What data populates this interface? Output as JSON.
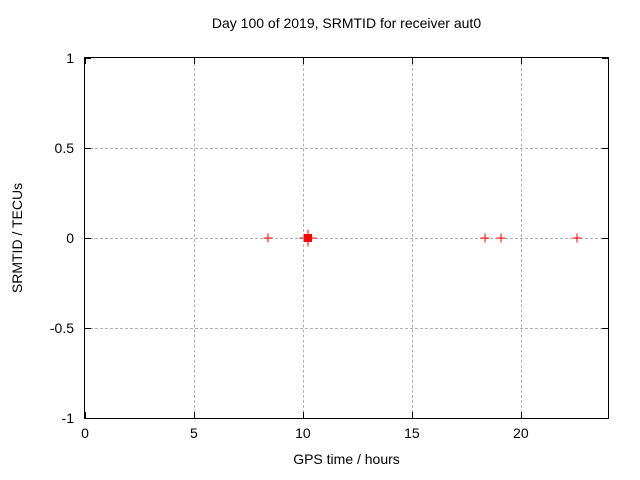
{
  "figure": {
    "background": "#ffffff"
  },
  "chart_data": {
    "type": "scatter",
    "title": "Day 100 of 2019, SRMTID for receiver aut0",
    "xlabel": "GPS time / hours",
    "ylabel": "SRMTID / TECUs",
    "xlim": [
      0,
      24
    ],
    "ylim": [
      -1,
      1
    ],
    "xticks": {
      "values": [
        0,
        5,
        10,
        15,
        20
      ],
      "labels": [
        "0",
        "5",
        "10",
        "15",
        "20"
      ]
    },
    "yticks": {
      "values": [
        1,
        0.5,
        0,
        -0.5,
        -1
      ],
      "labels": [
        "1",
        "0.5",
        "0",
        "-0.5",
        "-1"
      ]
    },
    "grid": true,
    "legend": "none",
    "colors": {
      "marker": "#ff0000",
      "grid": "#b0b0b0",
      "border": "#000000",
      "text": "#000000"
    },
    "series": [
      {
        "name": "SRMTID detections (cross)",
        "marker": "plus",
        "size": 9,
        "color": "#ff0000",
        "points": [
          {
            "x": 8.4,
            "y": 0
          },
          {
            "x": 18.35,
            "y": 0
          },
          {
            "x": 19.1,
            "y": 0
          },
          {
            "x": 22.6,
            "y": 0
          }
        ]
      },
      {
        "name": "highlighted detection (cross)",
        "marker": "plus",
        "size": 17,
        "color": "#ff0000",
        "points": [
          {
            "x": 10.25,
            "y": 0
          }
        ]
      },
      {
        "name": "highlighted detection (square)",
        "marker": "filled-square",
        "size": 8,
        "color": "#ff0000",
        "points": [
          {
            "x": 10.25,
            "y": 0
          }
        ]
      }
    ]
  }
}
